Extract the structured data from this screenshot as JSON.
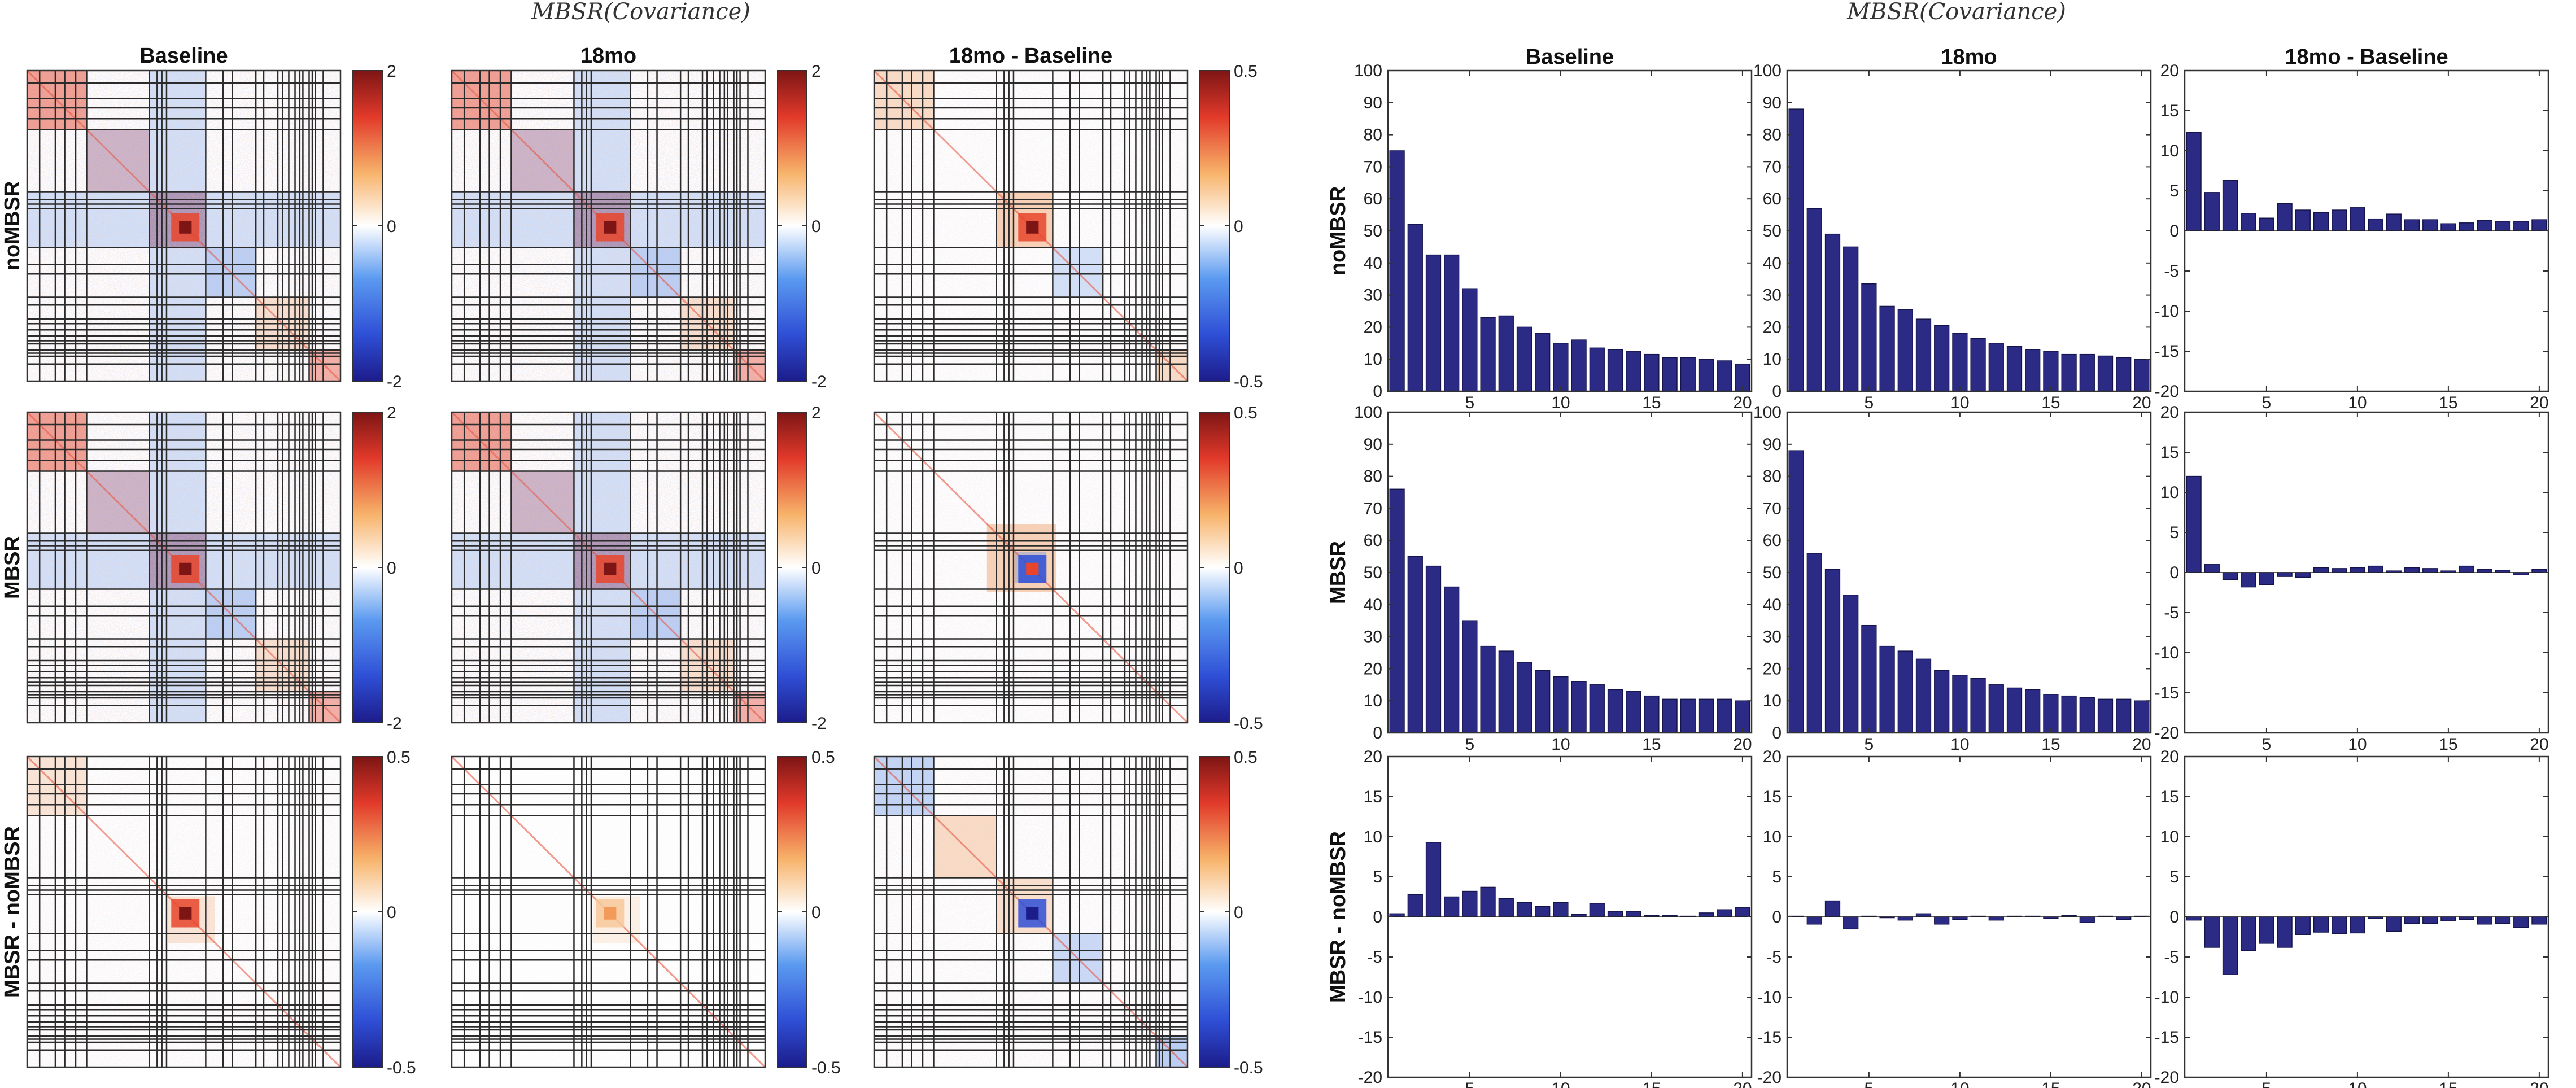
{
  "figure_titles": {
    "left": "MBSR(Covariance)",
    "right": "MBSR(Covariance)"
  },
  "column_titles": [
    "Baseline",
    "18mo",
    "18mo - Baseline"
  ],
  "row_labels": [
    "noMBSR",
    "MBSR",
    "MBSR - noMBSR"
  ],
  "colors": {
    "bar": "#2b2a85",
    "bar_edge": "#15144a",
    "colormap_low": "#2a2aa5",
    "colormap_mid": "#ffffff",
    "colormap_high": "#8c1a1a"
  },
  "chart_data": [
    {
      "type": "heatmap",
      "title": "MBSR(Covariance)",
      "description": "3x3 grid of covariance matrices with network-boundary grid lines and diverging blue-white-red colorbars",
      "colorbars": [
        [
          {
            "max": "2",
            "mid": "0",
            "min": "-2"
          },
          {
            "max": "2",
            "mid": "0",
            "min": "-2"
          },
          {
            "max": "0.5",
            "mid": "0",
            "min": "-0.5"
          }
        ],
        [
          {
            "max": "2",
            "mid": "0",
            "min": "-2"
          },
          {
            "max": "2",
            "mid": "0",
            "min": "-2"
          },
          {
            "max": "0.5",
            "mid": "0",
            "min": "-0.5"
          }
        ],
        [
          {
            "max": "0.5",
            "mid": "0",
            "min": "-0.5"
          },
          {
            "max": "0.5",
            "mid": "0",
            "min": "-0.5"
          },
          {
            "max": "0.5",
            "mid": "0",
            "min": "-0.5"
          }
        ]
      ]
    },
    {
      "type": "bar",
      "title": "MBSR(Covariance)",
      "x": [
        1,
        2,
        3,
        4,
        5,
        6,
        7,
        8,
        9,
        10,
        11,
        12,
        13,
        14,
        15,
        16,
        17,
        18,
        19,
        20
      ],
      "xticks": [
        "5",
        "10",
        "15",
        "20"
      ],
      "xlim": [
        0.5,
        20.5
      ],
      "panels": [
        [
          {
            "ylim": [
              0,
              100
            ],
            "yticks": [
              "0",
              "10",
              "20",
              "30",
              "40",
              "50",
              "60",
              "70",
              "80",
              "90",
              "100"
            ],
            "values": [
              75,
              52,
              42.5,
              42.5,
              32,
              23,
              23.5,
              20,
              18,
              15,
              16,
              13.5,
              13,
              12.5,
              11.5,
              10.5,
              10.5,
              10,
              9.5,
              8.5
            ]
          },
          {
            "ylim": [
              0,
              100
            ],
            "yticks": [
              "0",
              "10",
              "20",
              "30",
              "40",
              "50",
              "60",
              "70",
              "80",
              "90",
              "100"
            ],
            "values": [
              88,
              57,
              49,
              45,
              33.5,
              26.5,
              25.5,
              22.5,
              20.5,
              18,
              16.5,
              15,
              14,
              13,
              12.5,
              11.5,
              11.5,
              11,
              10.5,
              10
            ]
          },
          {
            "ylim": [
              -20,
              20
            ],
            "yticks": [
              "-20",
              "-15",
              "-10",
              "-5",
              "0",
              "5",
              "10",
              "15",
              "20"
            ],
            "values": [
              12.3,
              4.8,
              6.3,
              2.2,
              1.6,
              3.4,
              2.6,
              2.3,
              2.6,
              2.9,
              1.5,
              2.1,
              1.4,
              1.4,
              0.9,
              1.0,
              1.3,
              1.2,
              1.2,
              1.4
            ]
          }
        ],
        [
          {
            "ylim": [
              0,
              100
            ],
            "yticks": [
              "0",
              "10",
              "20",
              "30",
              "40",
              "50",
              "60",
              "70",
              "80",
              "90",
              "100"
            ],
            "values": [
              76,
              55,
              52,
              45.5,
              35,
              27,
              25.5,
              22,
              19.5,
              17.5,
              16,
              15,
              13.5,
              13,
              11.5,
              10.5,
              10.5,
              10.5,
              10.5,
              10
            ]
          },
          {
            "ylim": [
              0,
              100
            ],
            "yticks": [
              "0",
              "10",
              "20",
              "30",
              "40",
              "50",
              "60",
              "70",
              "80",
              "90",
              "100"
            ],
            "values": [
              88,
              56,
              51,
              43,
              33.5,
              27,
              25.5,
              23,
              19.5,
              18,
              17,
              15,
              14,
              13.5,
              12,
              11.5,
              11,
              10.5,
              10.5,
              10
            ]
          },
          {
            "ylim": [
              -20,
              20
            ],
            "yticks": [
              "-20",
              "-15",
              "-10",
              "-5",
              "0",
              "5",
              "10",
              "15",
              "20"
            ],
            "values": [
              12.0,
              1.0,
              -0.9,
              -1.8,
              -1.5,
              -0.5,
              -0.6,
              0.6,
              0.5,
              0.6,
              0.8,
              0.2,
              0.6,
              0.5,
              0.2,
              0.8,
              0.4,
              0.3,
              -0.3,
              0.4
            ]
          }
        ],
        [
          {
            "ylim": [
              -20,
              20
            ],
            "yticks": [
              "-20",
              "-15",
              "-10",
              "-5",
              "0",
              "5",
              "10",
              "15",
              "20"
            ],
            "values": [
              0.4,
              2.8,
              9.3,
              2.5,
              3.2,
              3.7,
              2.3,
              1.8,
              1.3,
              1.8,
              0.3,
              1.7,
              0.7,
              0.7,
              0.2,
              0.2,
              0.1,
              0.5,
              0.9,
              1.2
            ]
          },
          {
            "ylim": [
              -20,
              20
            ],
            "yticks": [
              "-20",
              "-15",
              "-10",
              "-5",
              "0",
              "5",
              "10",
              "15",
              "20"
            ],
            "values": [
              0.1,
              -0.9,
              2.0,
              -1.5,
              0.1,
              -0.1,
              -0.4,
              0.4,
              -0.9,
              -0.3,
              0.1,
              -0.4,
              0.1,
              0.1,
              -0.2,
              0.2,
              -0.7,
              0.1,
              -0.3,
              0.1
            ]
          },
          {
            "ylim": [
              -20,
              20
            ],
            "yticks": [
              "-20",
              "-15",
              "-10",
              "-5",
              "0",
              "5",
              "10",
              "15",
              "20"
            ],
            "values": [
              -0.4,
              -3.8,
              -7.2,
              -4.2,
              -3.3,
              -3.8,
              -2.2,
              -1.9,
              -2.1,
              -2.0,
              -0.2,
              -1.8,
              -0.8,
              -0.8,
              -0.5,
              -0.3,
              -0.9,
              -0.8,
              -1.3,
              -0.9
            ]
          }
        ]
      ]
    }
  ]
}
